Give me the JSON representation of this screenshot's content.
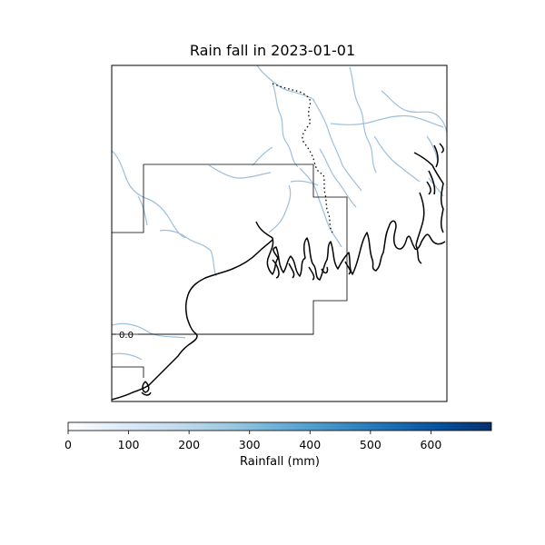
{
  "title": "Rain fall in 2023-01-01",
  "map": {
    "contour_label": "0.0",
    "colors": {
      "coastline": "#000000",
      "rivers": "#9ebfdc",
      "border": "#000000",
      "contour": "#000000"
    }
  },
  "colorbar": {
    "label": "Rainfall (mm)",
    "min": 0,
    "max": 700,
    "ticks": [
      {
        "value": 0,
        "label": "0"
      },
      {
        "value": 100,
        "label": "100"
      },
      {
        "value": 200,
        "label": "200"
      },
      {
        "value": 300,
        "label": "300"
      },
      {
        "value": 400,
        "label": "400"
      },
      {
        "value": 500,
        "label": "500"
      },
      {
        "value": 600,
        "label": "600"
      }
    ],
    "color_low": "#f7fbff",
    "color_high": "#08306b"
  }
}
